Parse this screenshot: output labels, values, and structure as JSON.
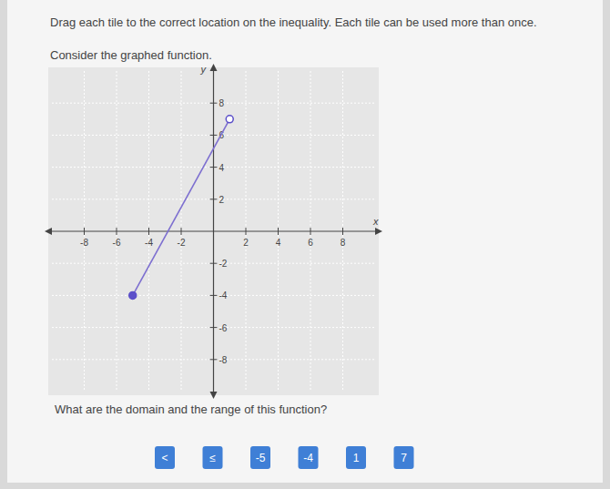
{
  "page": {
    "instruction": "Drag each tile to the correct location on the inequality. Each tile can be used more than once.",
    "prompt": "Consider the graphed function.",
    "question": "What are the domain and the range of this function?",
    "tiles": [
      "<",
      "≤",
      "-5",
      "-4",
      "1",
      "7"
    ]
  },
  "chart_data": {
    "type": "line",
    "x_label": "x",
    "y_label": "y",
    "x": [
      -5,
      1
    ],
    "series": [
      {
        "type": "line",
        "color": "#7d6fd0",
        "values": [
          -4,
          7
        ]
      },
      {
        "type": "scatter",
        "marker": "filled",
        "color": "#5b4fc9",
        "values": [
          -4,
          null
        ]
      },
      {
        "type": "scatter",
        "marker": "open",
        "color": "#5b4fc9",
        "values": [
          null,
          7
        ]
      }
    ],
    "xlim": [
      -10,
      10
    ],
    "ylim": [
      -10,
      10
    ],
    "xticks": [
      -8,
      -6,
      -4,
      -2,
      2,
      4,
      6,
      8
    ],
    "yticks": [
      -8,
      -6,
      -4,
      -2,
      2,
      4,
      6,
      8
    ],
    "grid": true
  }
}
